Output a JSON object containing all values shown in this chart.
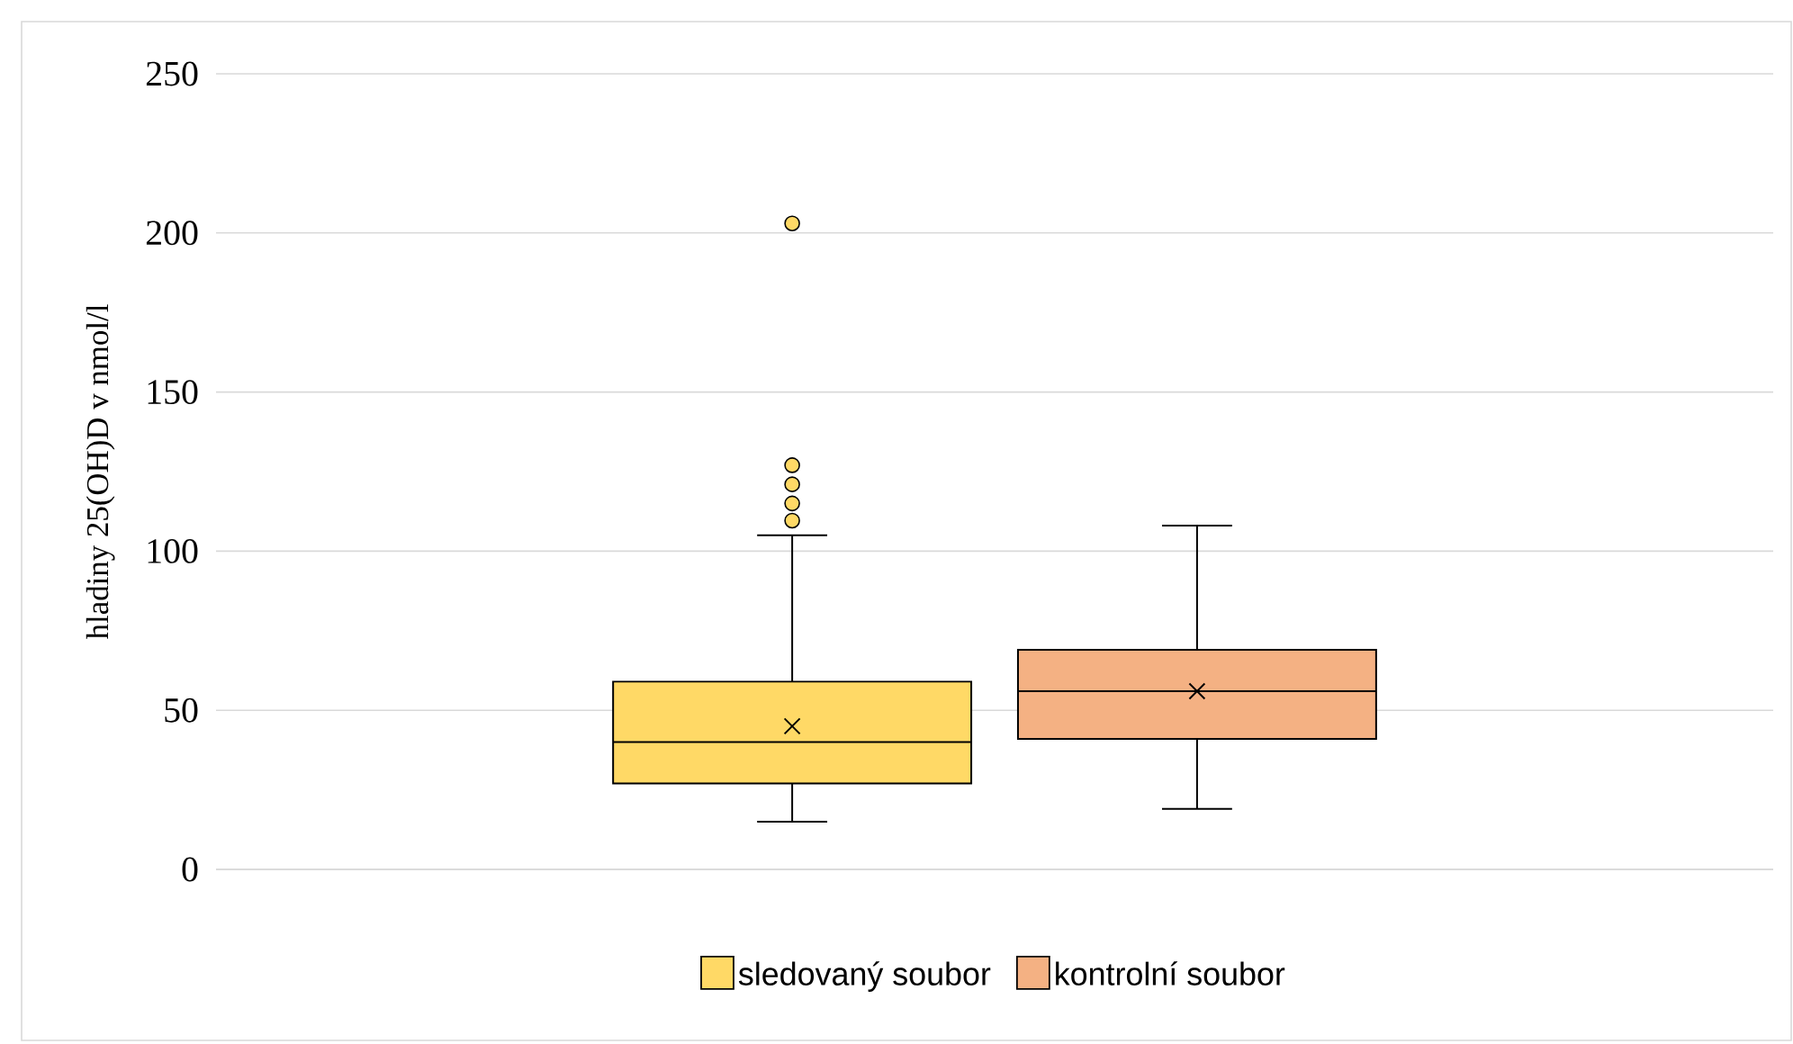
{
  "chart_data": {
    "type": "box",
    "ylabel": "hladiny 25(OH)D v nmol/l",
    "categories": [
      null
    ],
    "ylim": [
      0,
      250
    ],
    "yticks": [
      0,
      50,
      100,
      150,
      200,
      250
    ],
    "grid": "y",
    "legend": "bottom",
    "series": [
      {
        "name": "sledovaný soubor",
        "color": "#ffd966",
        "boxes": [
          {
            "low": 15,
            "q1": 27,
            "median": 40,
            "q3": 59,
            "high": 105,
            "mean": 45,
            "outliers": [
              109.6,
              115,
              121,
              127,
              203
            ]
          }
        ]
      },
      {
        "name": "kontrolní soubor",
        "color": "#f4b183",
        "boxes": [
          {
            "low": 19,
            "q1": 41,
            "median": 56,
            "q3": 69,
            "high": 108,
            "mean": 56
          }
        ]
      }
    ]
  }
}
